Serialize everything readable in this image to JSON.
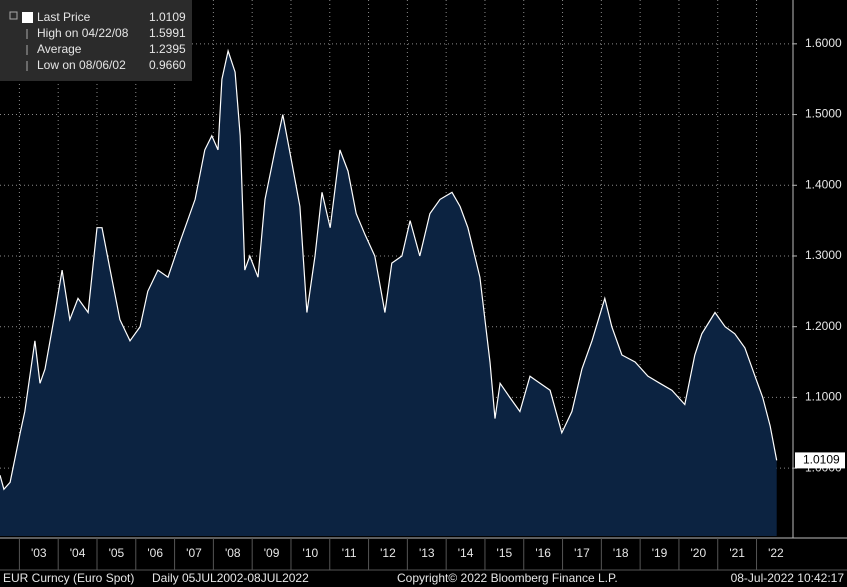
{
  "chart_data": {
    "type": "area",
    "legend": [
      {
        "label": "Last Price",
        "value": "1.0109"
      },
      {
        "label": "High on 04/22/08",
        "value": "1.5991"
      },
      {
        "label": "Average",
        "value": "1.2395"
      },
      {
        "label": "Low on 08/06/02",
        "value": "0.9660"
      }
    ],
    "series": [
      {
        "color": "#ffffff",
        "fill": "#0c2341",
        "x": [
          2002.5,
          2002.6,
          2002.76,
          2003.02,
          2003.14,
          2003.4,
          2003.53,
          2003.66,
          2003.92,
          2004.1,
          2004.3,
          2004.51,
          2004.77,
          2005.0,
          2005.13,
          2005.34,
          2005.59,
          2005.85,
          2006.11,
          2006.31,
          2006.57,
          2006.83,
          2007.14,
          2007.53,
          2007.78,
          2007.96,
          2008.12,
          2008.22,
          2008.38,
          2008.56,
          2008.69,
          2008.81,
          2008.94,
          2009.15,
          2009.33,
          2009.59,
          2009.79,
          2010.03,
          2010.23,
          2010.41,
          2010.62,
          2010.8,
          2011.01,
          2011.26,
          2011.47,
          2011.68,
          2011.91,
          2012.16,
          2012.42,
          2012.6,
          2012.86,
          2013.07,
          2013.32,
          2013.58,
          2013.84,
          2014.15,
          2014.36,
          2014.56,
          2014.87,
          2015.13,
          2015.26,
          2015.39,
          2015.64,
          2015.9,
          2016.16,
          2016.42,
          2016.68,
          2016.98,
          2017.24,
          2017.5,
          2017.76,
          2018.09,
          2018.27,
          2018.53,
          2018.87,
          2019.2,
          2019.51,
          2019.82,
          2020.15,
          2020.41,
          2020.59,
          2020.93,
          2021.19,
          2021.44,
          2021.7,
          2021.96,
          2022.16,
          2022.35,
          2022.52
        ],
        "values": [
          0.99,
          0.97,
          0.98,
          1.05,
          1.08,
          1.18,
          1.12,
          1.14,
          1.22,
          1.28,
          1.21,
          1.24,
          1.22,
          1.34,
          1.34,
          1.28,
          1.21,
          1.18,
          1.2,
          1.25,
          1.28,
          1.27,
          1.32,
          1.38,
          1.45,
          1.47,
          1.45,
          1.55,
          1.59,
          1.56,
          1.47,
          1.28,
          1.3,
          1.27,
          1.38,
          1.45,
          1.5,
          1.43,
          1.37,
          1.22,
          1.3,
          1.39,
          1.34,
          1.45,
          1.42,
          1.36,
          1.33,
          1.3,
          1.22,
          1.29,
          1.3,
          1.35,
          1.3,
          1.36,
          1.38,
          1.39,
          1.37,
          1.34,
          1.27,
          1.15,
          1.07,
          1.12,
          1.1,
          1.08,
          1.13,
          1.12,
          1.11,
          1.05,
          1.08,
          1.14,
          1.18,
          1.24,
          1.2,
          1.16,
          1.15,
          1.13,
          1.12,
          1.11,
          1.09,
          1.16,
          1.19,
          1.22,
          1.2,
          1.19,
          1.17,
          1.13,
          1.1,
          1.06,
          1.0109
        ]
      }
    ],
    "last_label": "1.0109",
    "xlim": [
      2002.5,
      2022.94
    ],
    "ylim": [
      0.904,
      1.662
    ],
    "xticks": [
      {
        "value": 2003,
        "label": "'03"
      },
      {
        "value": 2004,
        "label": "'04"
      },
      {
        "value": 2005,
        "label": "'05"
      },
      {
        "value": 2006,
        "label": "'06"
      },
      {
        "value": 2007,
        "label": "'07"
      },
      {
        "value": 2008,
        "label": "'08"
      },
      {
        "value": 2009,
        "label": "'09"
      },
      {
        "value": 2010,
        "label": "'10"
      },
      {
        "value": 2011,
        "label": "'11"
      },
      {
        "value": 2012,
        "label": "'12"
      },
      {
        "value": 2013,
        "label": "'13"
      },
      {
        "value": 2014,
        "label": "'14"
      },
      {
        "value": 2015,
        "label": "'15"
      },
      {
        "value": 2016,
        "label": "'16"
      },
      {
        "value": 2017,
        "label": "'17"
      },
      {
        "value": 2018,
        "label": "'18"
      },
      {
        "value": 2019,
        "label": "'19"
      },
      {
        "value": 2020,
        "label": "'20"
      },
      {
        "value": 2021,
        "label": "'21"
      },
      {
        "value": 2022,
        "label": "'22"
      }
    ],
    "yticks": [
      {
        "value": 1.0,
        "label": "1.0000"
      },
      {
        "value": 1.1,
        "label": "1.1000"
      },
      {
        "value": 1.2,
        "label": "1.2000"
      },
      {
        "value": 1.3,
        "label": "1.3000"
      },
      {
        "value": 1.4,
        "label": "1.4000"
      },
      {
        "value": 1.5,
        "label": "1.5000"
      },
      {
        "value": 1.6,
        "label": "1.6000"
      }
    ],
    "grid": true,
    "footer": {
      "security": "EUR Curncy (Euro Spot)",
      "range": "Daily 05JUL2002-08JUL2022",
      "copyright": "Copyright© 2022 Bloomberg Finance L.P.",
      "timestamp": "08-Jul-2022 10:42:17"
    }
  }
}
